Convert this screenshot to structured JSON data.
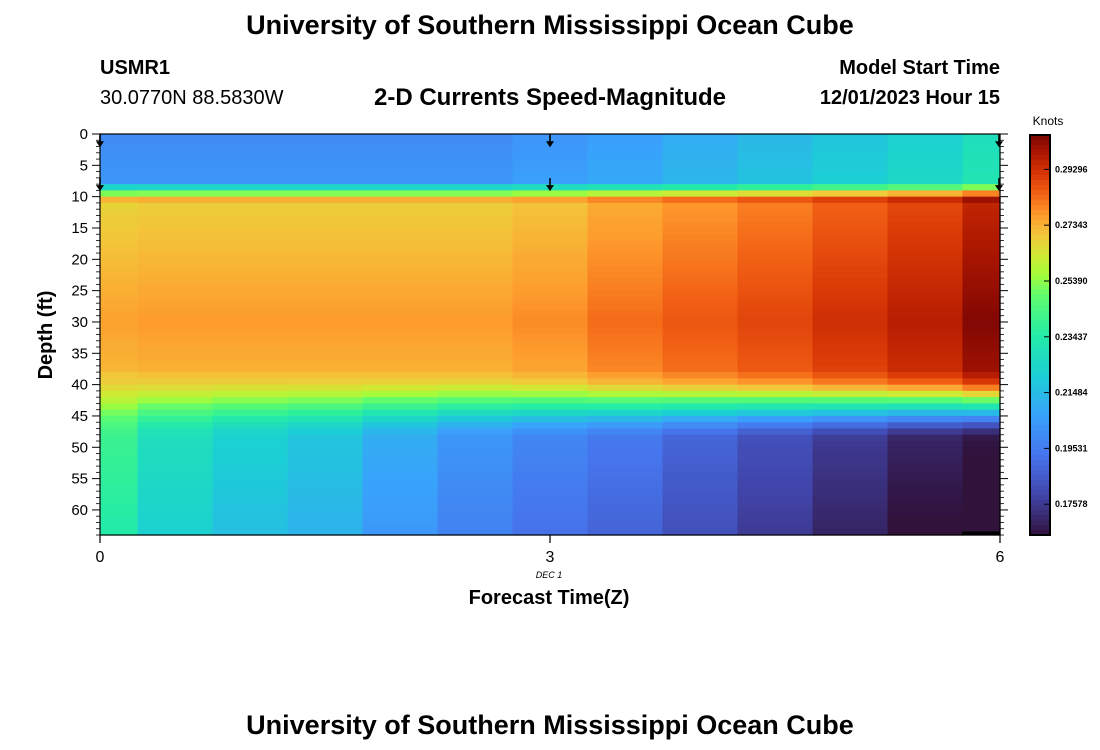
{
  "page": {
    "title_top": "University of Southern Mississippi Ocean Cube",
    "title_bottom": "University of Southern Mississippi Ocean Cube",
    "station_id": "USMR1",
    "station_coords": "30.0770N  88.5830W",
    "plot_title": "2-D Currents Speed-Magnitude",
    "model_start_label": "Model Start Time",
    "model_start_value": "12/01/2023 Hour 15"
  },
  "chart_data": {
    "type": "heatmap",
    "title": "2-D Currents Speed-Magnitude",
    "xlabel": "Forecast Time(Z)",
    "ylabel": "Depth (ft)",
    "x_tick_labels": [
      "0",
      "3",
      "6"
    ],
    "x_ticks": [
      0,
      3,
      6
    ],
    "date_label": "DEC 1",
    "xlim": [
      0,
      6
    ],
    "y_tick_labels": [
      "0",
      "5",
      "10",
      "15",
      "20",
      "25",
      "30",
      "35",
      "40",
      "45",
      "50",
      "55",
      "60"
    ],
    "y_ticks": [
      0,
      5,
      10,
      15,
      20,
      25,
      30,
      35,
      40,
      45,
      50,
      55,
      60
    ],
    "ylim": [
      0,
      64
    ],
    "y_inverted": true,
    "colorbar": {
      "label": "Knots",
      "min": 0.165,
      "max": 0.305,
      "tick_labels": [
        "0.29296",
        "0.27343",
        "0.25390",
        "0.23437",
        "0.21484",
        "0.19531",
        "0.17578"
      ],
      "ticks": [
        0.29296,
        0.27343,
        0.2539,
        0.23437,
        0.21484,
        0.19531,
        0.17578
      ]
    },
    "columns": [
      {
        "x": 0,
        "surface": 0.2,
        "bottom": 0.24
      },
      {
        "x": 0.5,
        "surface": 0.2,
        "bottom": 0.228
      },
      {
        "x": 1,
        "surface": 0.2,
        "bottom": 0.222
      },
      {
        "x": 1.5,
        "surface": 0.2,
        "bottom": 0.218
      },
      {
        "x": 2,
        "surface": 0.2,
        "bottom": 0.21
      },
      {
        "x": 2.5,
        "surface": 0.2,
        "bottom": 0.203
      },
      {
        "x": 3,
        "surface": 0.203,
        "bottom": 0.198
      },
      {
        "x": 3.5,
        "surface": 0.206,
        "bottom": 0.194
      },
      {
        "x": 4,
        "surface": 0.21,
        "bottom": 0.188
      },
      {
        "x": 4.5,
        "surface": 0.214,
        "bottom": 0.182
      },
      {
        "x": 5,
        "surface": 0.218,
        "bottom": 0.176
      },
      {
        "x": 5.5,
        "surface": 0.222,
        "bottom": 0.17
      },
      {
        "x": 6,
        "surface": 0.228,
        "bottom": 0.166
      }
    ],
    "core": [
      {
        "x": 0,
        "peak": 0.276
      },
      {
        "x": 0.5,
        "peak": 0.277
      },
      {
        "x": 1,
        "peak": 0.277
      },
      {
        "x": 1.5,
        "peak": 0.277
      },
      {
        "x": 2,
        "peak": 0.277
      },
      {
        "x": 2.5,
        "peak": 0.277
      },
      {
        "x": 3,
        "peak": 0.279
      },
      {
        "x": 3.5,
        "peak": 0.283
      },
      {
        "x": 4,
        "peak": 0.286
      },
      {
        "x": 4.5,
        "peak": 0.289
      },
      {
        "x": 5,
        "peak": 0.293
      },
      {
        "x": 5.5,
        "peak": 0.297
      },
      {
        "x": 6,
        "peak": 0.304
      }
    ],
    "vectors": [
      {
        "x": 0,
        "depth": 1
      },
      {
        "x": 0,
        "depth": 8
      },
      {
        "x": 3,
        "depth": 1
      },
      {
        "x": 3,
        "depth": 8
      },
      {
        "x": 6,
        "depth": 1
      },
      {
        "x": 6,
        "depth": 8
      }
    ]
  }
}
